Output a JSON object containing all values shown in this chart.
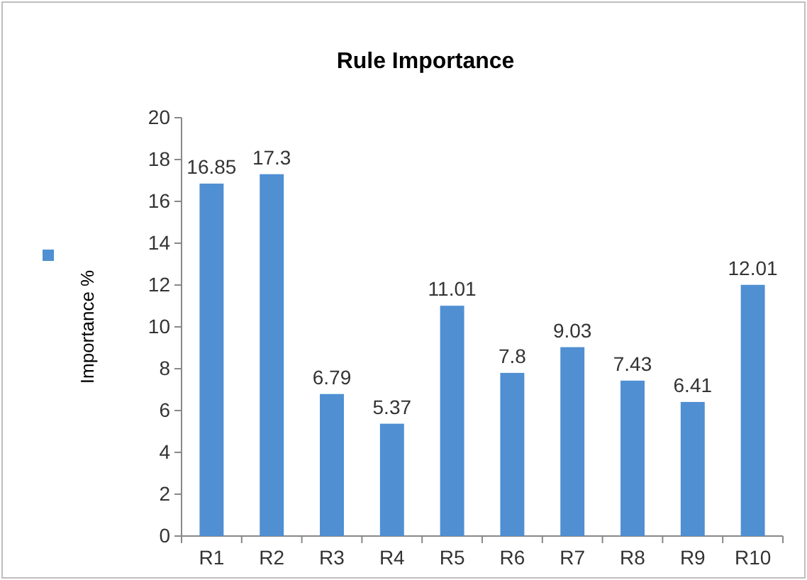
{
  "chart_data": {
    "type": "bar",
    "title": "Rule Importance",
    "ylabel": "Importance %",
    "categories": [
      "R1",
      "R2",
      "R3",
      "R4",
      "R5",
      "R6",
      "R7",
      "R8",
      "R9",
      "R10"
    ],
    "series": [
      {
        "color": "#4f8fd2",
        "values": [
          16.85,
          17.3,
          6.79,
          5.37,
          11.01,
          7.8,
          9.03,
          7.43,
          6.41,
          12.01
        ]
      }
    ],
    "ylim": [
      0,
      20
    ],
    "yticks": [
      0,
      2,
      4,
      6,
      8,
      10,
      12,
      14,
      16,
      18,
      20
    ],
    "data_labels": true
  }
}
